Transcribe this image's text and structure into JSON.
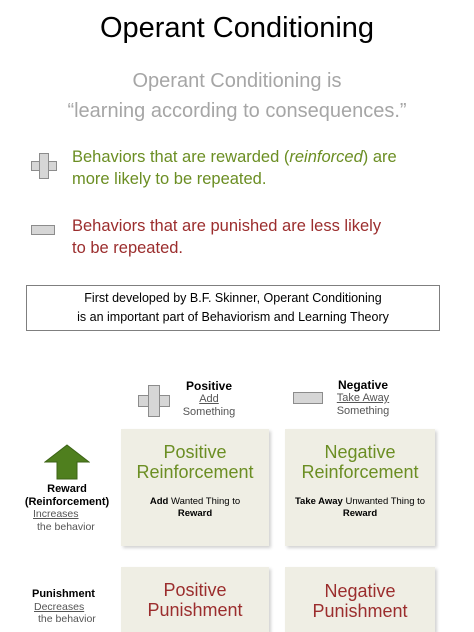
{
  "title": "Operant Conditioning",
  "definition": {
    "line1": "Operant Conditioning is",
    "line2": "“learning according to consequences.”"
  },
  "reward_statement": {
    "before": "Behaviors that are rewarded (",
    "italic": "reinforced",
    "after": ") are",
    "line2": "more likely to be repeated."
  },
  "punish_statement": {
    "line1": "Behaviors that are punished are less likely",
    "line2": "to be repeated."
  },
  "note": {
    "line1": "First developed by B.F. Skinner, Operant Conditioning",
    "line2": "is an important part of Behaviorism and Learning Theory"
  },
  "columns": {
    "positive": {
      "heading": "Positive",
      "action": "Add",
      "object": "Something"
    },
    "negative": {
      "heading": "Negative",
      "action": "Take Away",
      "object": "Something"
    }
  },
  "rows": {
    "reward": {
      "heading": "Reward",
      "sub": "(Reinforcement)",
      "effect": "Increases",
      "object": "the behavior"
    },
    "punishment": {
      "heading": "Punishment",
      "effect": "Decreases",
      "object": "the behavior"
    }
  },
  "cells": {
    "pos_reinf": {
      "line1": "Positive",
      "line2": "Reinforcement",
      "bold1": "Add",
      "desc": " Wanted Thing to",
      "bold2": "Reward"
    },
    "neg_reinf": {
      "line1": "Negative",
      "line2": "Reinforcement",
      "bold1": "Take Away",
      "desc": " Unwanted Thing to",
      "bold2": "Reward"
    },
    "pos_pun": {
      "line1": "Positive",
      "line2": "Punishment"
    },
    "neg_pun": {
      "line1": "Negative",
      "line2": "Punishment"
    }
  },
  "colors": {
    "reward_green": "#6b8e23",
    "punish_red": "#9b2d2d",
    "cell_bg": "#efeee4",
    "arrow_green": "#4f7f1e"
  }
}
